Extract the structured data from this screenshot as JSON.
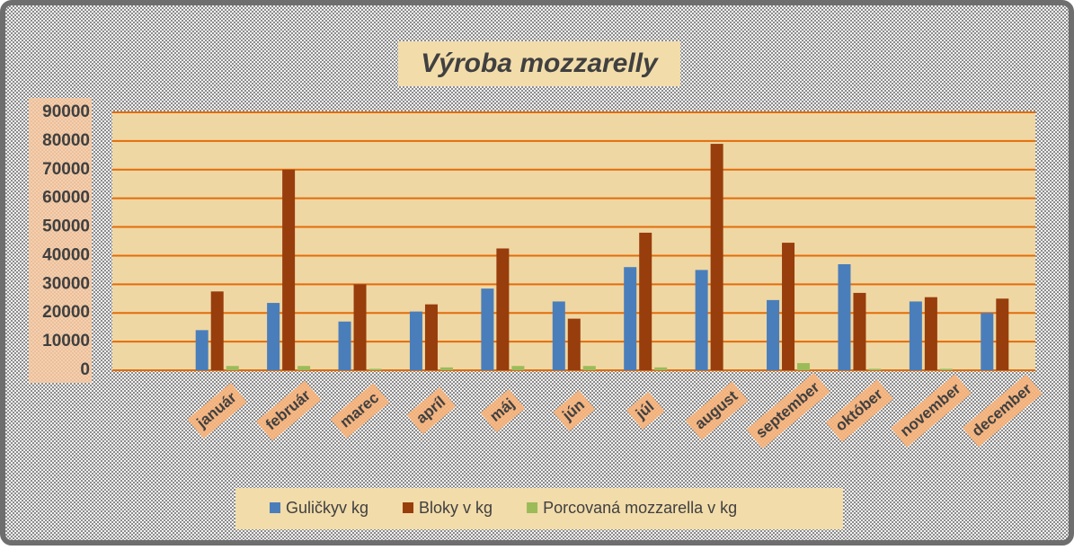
{
  "chart_data": {
    "type": "bar",
    "title": "Výroba mozzarelly",
    "categories": [
      "január",
      "február",
      "marec",
      "apríl",
      "máj",
      "jún",
      "júl",
      "august",
      "september",
      "október",
      "november",
      "december"
    ],
    "series": [
      {
        "name": "Guličkyv kg",
        "color": "#4a7ebb",
        "values": [
          14000,
          23500,
          17000,
          20500,
          28500,
          24000,
          36000,
          35000,
          24500,
          37000,
          24000,
          20000
        ]
      },
      {
        "name": "Bloky v kg",
        "color": "#983d0c",
        "values": [
          27500,
          70000,
          30000,
          23000,
          42500,
          18000,
          48000,
          79000,
          44500,
          27000,
          25500,
          25000
        ]
      },
      {
        "name": "Porcovaná mozzarella v kg",
        "color": "#9bbb59",
        "values": [
          1500,
          1500,
          500,
          1000,
          1500,
          1500,
          1000,
          0,
          2500,
          500,
          500,
          0
        ]
      }
    ],
    "ylim": [
      0,
      90000
    ],
    "yticks": [
      0,
      10000,
      20000,
      30000,
      40000,
      50000,
      60000,
      70000,
      80000,
      90000
    ],
    "grid": true,
    "legend": "bottom"
  }
}
